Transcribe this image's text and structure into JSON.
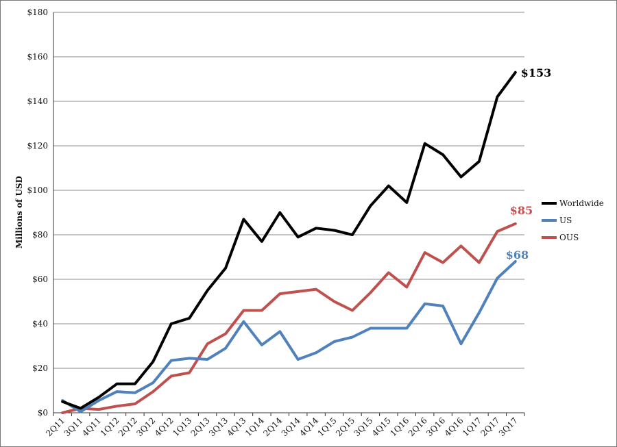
{
  "chart_data": {
    "type": "line",
    "title": "",
    "xlabel": "",
    "ylabel": "Millions of USD",
    "ylim": [
      0,
      180
    ],
    "y_ticks": [
      0,
      20,
      40,
      60,
      80,
      100,
      120,
      140,
      160,
      180
    ],
    "y_tick_labels": [
      "$0",
      "$20",
      "$40",
      "$60",
      "$80",
      "$100",
      "$120",
      "$140",
      "$160",
      "$180"
    ],
    "grid": "horizontal",
    "legend_position": "right",
    "categories": [
      "2Q11",
      "3Q11",
      "4Q11",
      "1Q12",
      "2Q12",
      "3Q12",
      "4Q12",
      "1Q13",
      "2Q13",
      "3Q13",
      "4Q13",
      "1Q14",
      "2Q14",
      "3Q14",
      "4Q14",
      "1Q15",
      "2Q15",
      "3Q15",
      "4Q15",
      "1Q16",
      "2Q16",
      "3Q16",
      "4Q16",
      "1Q17",
      "2Q17",
      "3Q17"
    ],
    "series": [
      {
        "name": "Worldwide",
        "color": "#000000",
        "values": [
          5,
          2,
          7,
          13,
          13,
          23,
          40,
          42.5,
          55,
          65,
          87,
          77,
          90,
          79,
          83,
          82,
          80,
          93,
          102,
          94.5,
          121,
          116,
          106,
          113,
          142,
          153
        ],
        "end_label": "$153"
      },
      {
        "name": "US",
        "color": "#4f81bd",
        "values": [
          5.5,
          0.5,
          5.5,
          9.5,
          9,
          13.5,
          23.5,
          24.5,
          24,
          29,
          41,
          30.5,
          36.5,
          24,
          27,
          32,
          34,
          38,
          38,
          38,
          49,
          48,
          31,
          45,
          60.5,
          68
        ],
        "end_label": "$68"
      },
      {
        "name": "OUS",
        "color": "#c0504d",
        "values": [
          0,
          2,
          1.5,
          3,
          4,
          9.5,
          16.5,
          18,
          31,
          35.5,
          46,
          46,
          53.5,
          54.5,
          55.5,
          50,
          46,
          54,
          63,
          56.5,
          72,
          67.5,
          75,
          67.5,
          81.5,
          85
        ],
        "end_label": "$85"
      }
    ]
  }
}
